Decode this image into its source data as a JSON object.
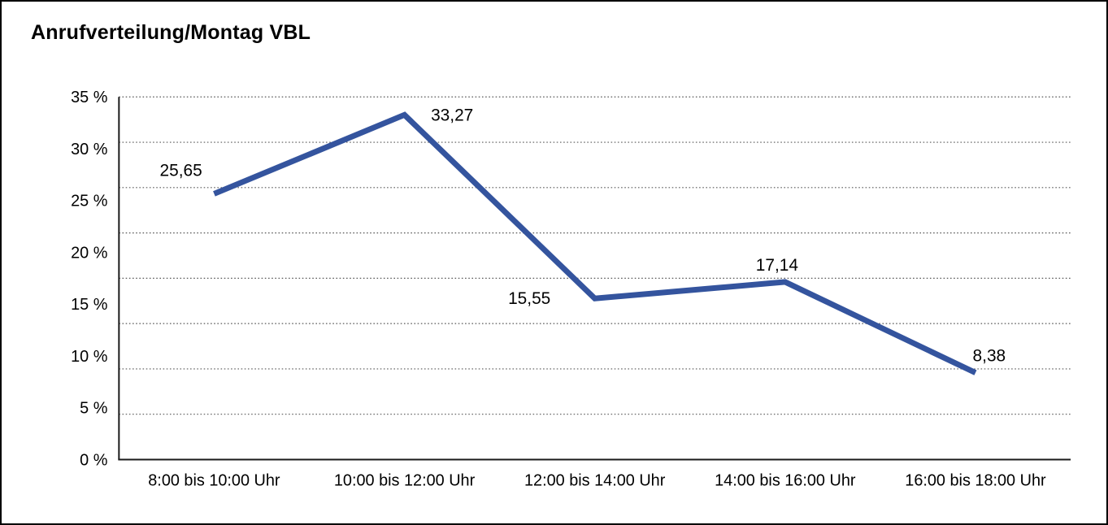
{
  "window": {
    "background": "#FFFFFF",
    "border_color": "#000000",
    "text_color": "#000000"
  },
  "chart_data": {
    "type": "line",
    "title": "Anrufverteilung/Montag VBL",
    "categories": [
      "8:00 bis 10:00 Uhr",
      "10:00 bis 12:00 Uhr",
      "12:00 bis 14:00 Uhr",
      "14:00 bis 16:00 Uhr",
      "16:00 bis 18:00 Uhr"
    ],
    "values": [
      25.65,
      33.27,
      15.55,
      17.14,
      8.38
    ],
    "value_labels": [
      "25,65",
      "33,27",
      "15,55",
      "17,14",
      "8,38"
    ],
    "y_tick_labels_top_down": [
      "35 %",
      "30 %",
      "25 %",
      "20 %",
      "15 %",
      "10 %",
      "5 %",
      "0 %"
    ],
    "ylim": [
      0,
      35
    ],
    "y_label_step": 5,
    "gridline_intervals": 8,
    "grid": "horizontal-dotted",
    "legend_position": "none",
    "xlabel": "",
    "ylabel": "",
    "series_name": "",
    "line_color": "#34549E",
    "gridline_color": "#3b3b3b",
    "axis_color": "#1a1a1a",
    "label_color": "#000000"
  }
}
